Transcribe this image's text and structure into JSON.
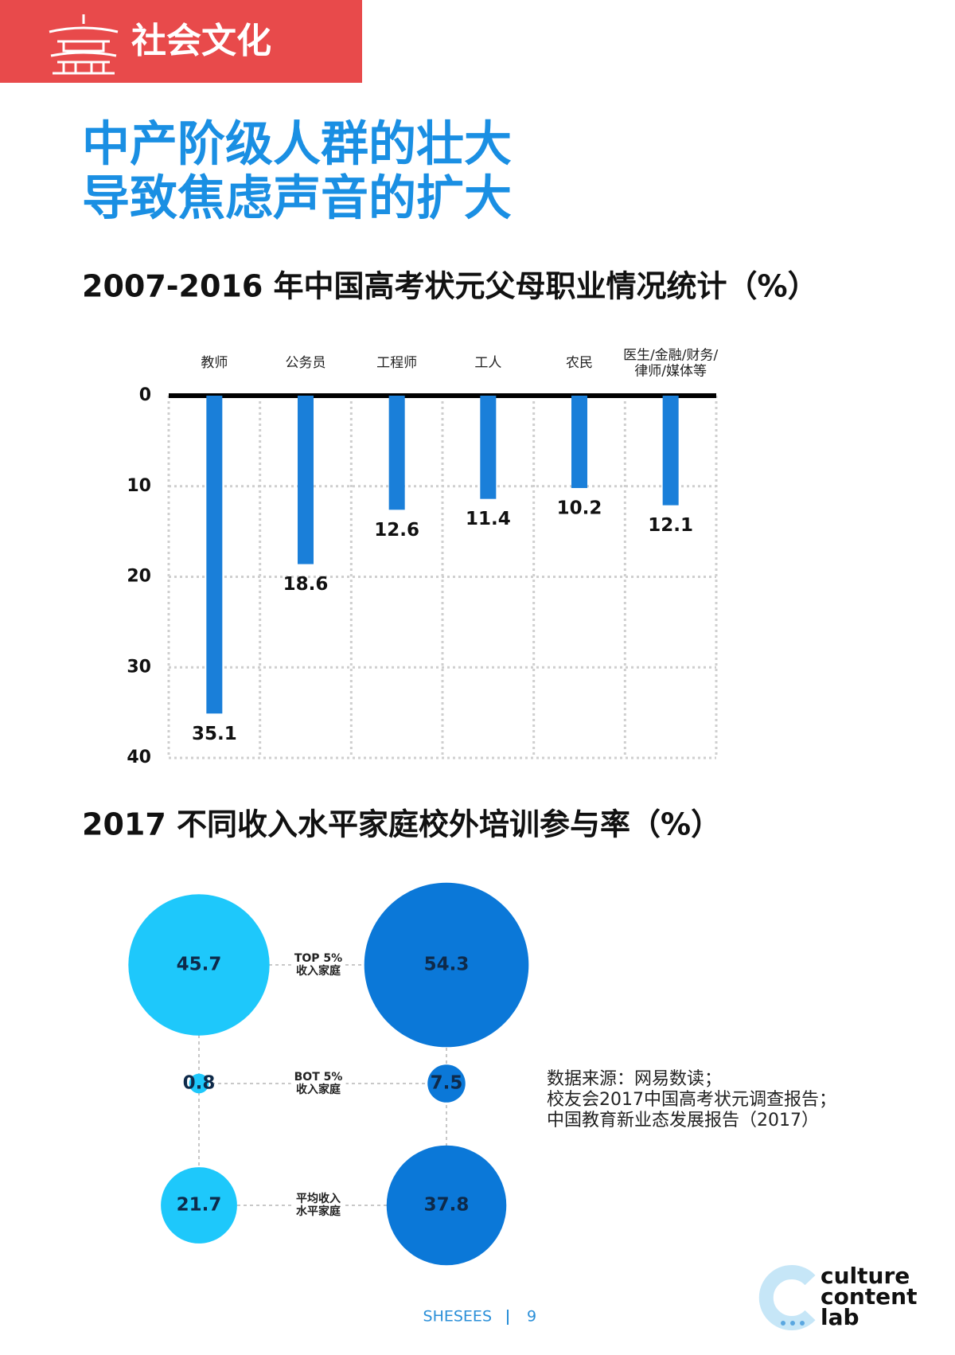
{
  "header": {
    "section": "社会文化"
  },
  "title": [
    "中产阶级人群的壮大",
    "导致焦虑声音的扩大"
  ],
  "chart_data": [
    {
      "type": "bar",
      "title": "2007-2016 年中国高考状元父母职业情况统计（%）",
      "categories": [
        "教师",
        "公务员",
        "工程师",
        "工人",
        "农民",
        "医生/金融/财务/\n律师/媒体等"
      ],
      "values": [
        35.1,
        18.6,
        12.6,
        11.4,
        10.2,
        12.1
      ],
      "color": "#1a7fd9",
      "ylim": [
        0,
        40
      ],
      "yticks": [
        0,
        10,
        20,
        30,
        40
      ],
      "inverted": true,
      "grid": true
    },
    {
      "type": "bubble",
      "title": "2017 不同收入水平家庭校外培训参与率（%）",
      "categories": [
        "TOP 5%\n收入家庭",
        "BOT 5%\n收入家庭",
        "平均收入\n水平家庭"
      ],
      "series": [
        {
          "color": "#1ec8fb",
          "values": [
            45.7,
            0.8,
            21.7
          ]
        },
        {
          "color": "#0b78d8",
          "values": [
            54.3,
            7.5,
            37.8
          ]
        }
      ]
    }
  ],
  "source": [
    "数据来源：网易数读；",
    "校友会2017中国高考状元调查报告；",
    "中国教育新业态发展报告（2017）"
  ],
  "footer": {
    "brand": "SHESEES",
    "page": "9",
    "logo": [
      "culture",
      "content",
      "lab"
    ]
  }
}
